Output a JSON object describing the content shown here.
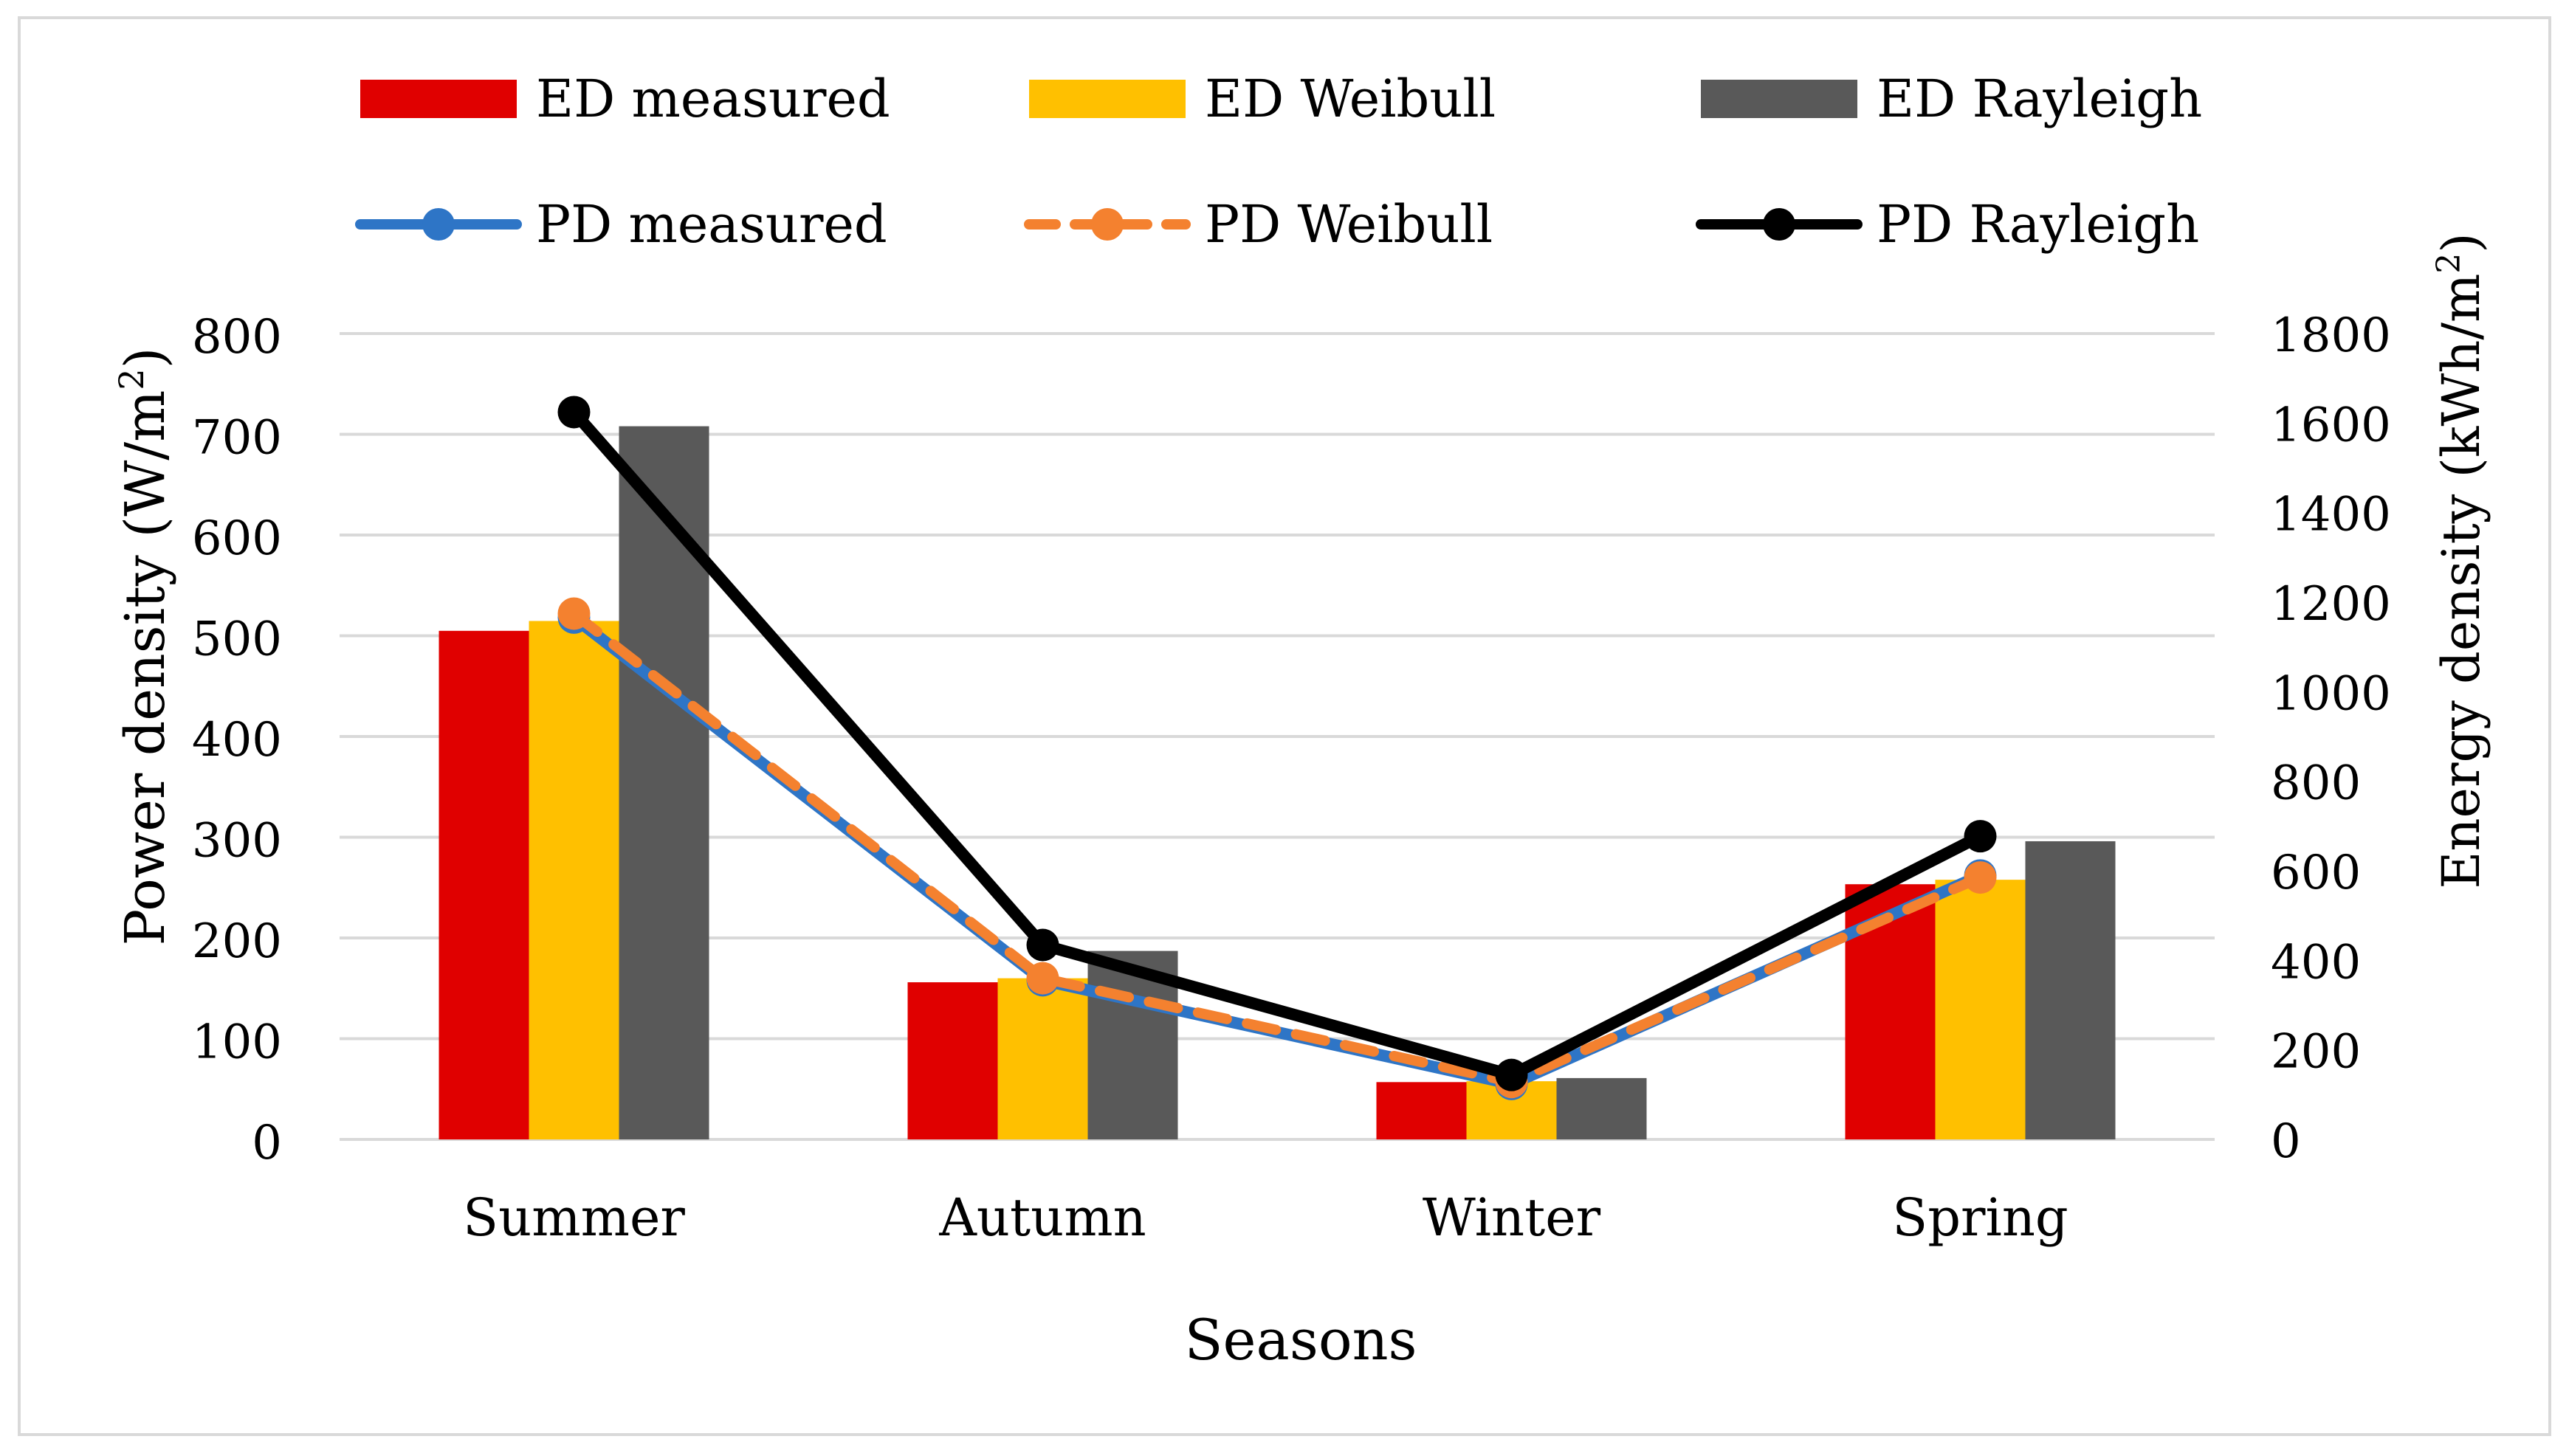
{
  "chart_data": {
    "type": "bar",
    "categories": [
      "Summer",
      "Autumn",
      "Winter",
      "Spring"
    ],
    "xlabel": "Seasons",
    "ylabel_left": "Power density (W/m",
    "ylabel_left_sup": "2",
    "ylabel_left_close": ")",
    "ylabel_right": "Energy density (kWh/m",
    "ylabel_right_sup": "2",
    "ylabel_right_close": ")",
    "ylim_left": [
      0,
      800
    ],
    "yticks_left": [
      "0",
      "100",
      "200",
      "300",
      "400",
      "500",
      "600",
      "700",
      "800"
    ],
    "ylim_right": [
      0,
      1800
    ],
    "yticks_right": [
      "0",
      "200",
      "400",
      "600",
      "800",
      "1000",
      "1200",
      "1400",
      "1600",
      "1800"
    ],
    "grid": true,
    "legend_position": "top",
    "bar_series": [
      {
        "name": "ED measured",
        "color": "#E00000",
        "axis": "right",
        "values": [
          1136,
          351,
          128,
          570
        ]
      },
      {
        "name": "ED Weibull",
        "color": "#FFC000",
        "axis": "right",
        "values": [
          1158,
          360,
          130,
          580
        ]
      },
      {
        "name": "ED Rayleigh",
        "color": "#595959",
        "axis": "right",
        "values": [
          1593,
          421,
          137,
          666
        ]
      }
    ],
    "line_series": [
      {
        "name": "PD measured",
        "color": "#2E75C6",
        "axis": "left",
        "style": "solid",
        "values": [
          518,
          158,
          55,
          262
        ]
      },
      {
        "name": "PD Weibull",
        "color": "#F4812F",
        "axis": "left",
        "style": "dashed",
        "values": [
          522,
          160,
          57,
          260
        ]
      },
      {
        "name": "PD Rayleigh",
        "color": "#000000",
        "axis": "left",
        "style": "solid",
        "values": [
          722,
          193,
          64,
          301
        ]
      }
    ]
  }
}
